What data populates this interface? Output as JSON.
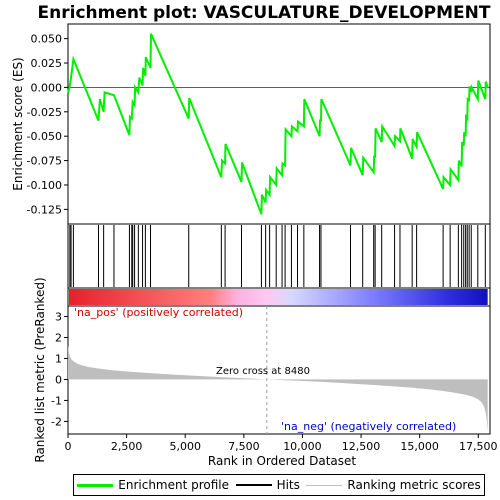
{
  "chart_data": {
    "type": "line",
    "title": "Enrichment plot: VASCULATURE_DEVELOPMENT",
    "xlabel": "Rank in Ordered Dataset",
    "top_ylabel": "Enrichment score (ES)",
    "bottom_ylabel": "Ranked list metric (PreRanked)",
    "xlim": [
      0,
      18000
    ],
    "es_ylim": [
      -0.14,
      0.065
    ],
    "es_yticks": [
      -0.125,
      -0.1,
      -0.075,
      -0.05,
      -0.025,
      0.0,
      0.025,
      0.05
    ],
    "es_ytick_labels": [
      "-0.125",
      "-0.100",
      "-0.075",
      "-0.050",
      "-0.025",
      "0.000",
      "0.025",
      "0.050"
    ],
    "metric_ylim": [
      -2.6,
      3.5
    ],
    "metric_yticks": [
      -2,
      -1,
      0,
      1,
      2,
      3
    ],
    "xticks": [
      0,
      2500,
      5000,
      7500,
      10000,
      12500,
      15000,
      17500
    ],
    "xtick_labels": [
      "0",
      "2,500",
      "5,000",
      "7,500",
      "10,000",
      "12,500",
      "15,000",
      "17,500"
    ],
    "es_series": {
      "name": "Enrichment profile",
      "color": "#00ee00",
      "x": [
        0,
        80,
        130,
        230,
        1300,
        1360,
        1520,
        1560,
        1960,
        2620,
        2640,
        2720,
        2760,
        2840,
        2860,
        3000,
        3040,
        3180,
        3200,
        3300,
        3320,
        3520,
        3540,
        5150,
        5170,
        6540,
        6570,
        6700,
        6720,
        7400,
        7420,
        8250,
        8270,
        8430,
        8450,
        8600,
        8620,
        8880,
        8900,
        9130,
        9150,
        9260,
        9280,
        9530,
        9550,
        9790,
        9810,
        10060,
        10080,
        10730,
        10750,
        10790,
        10810,
        12050,
        12070,
        12570,
        12590,
        13040,
        13060,
        13100,
        13120,
        13380,
        13400,
        13930,
        13950,
        14160,
        14180,
        14680,
        14700,
        14870,
        14890,
        16000,
        16020,
        16300,
        16320,
        16650,
        16670,
        16790,
        16810,
        16880,
        16900,
        16960,
        16980,
        17030,
        17050,
        17110,
        17130,
        17200,
        17220,
        17480,
        17500,
        17800,
        17820,
        17900
      ],
      "y": [
        -0.006,
        0.002,
        0.01,
        0.029,
        -0.034,
        -0.012,
        -0.025,
        -0.005,
        -0.008,
        -0.049,
        -0.03,
        -0.032,
        -0.015,
        -0.018,
        0.0,
        -0.005,
        0.01,
        0.002,
        0.02,
        0.012,
        0.031,
        0.02,
        0.055,
        -0.032,
        -0.011,
        -0.092,
        -0.075,
        -0.078,
        -0.058,
        -0.097,
        -0.077,
        -0.13,
        -0.11,
        -0.118,
        -0.105,
        -0.11,
        -0.092,
        -0.1,
        -0.083,
        -0.09,
        -0.078,
        -0.08,
        -0.043,
        -0.05,
        -0.04,
        -0.045,
        -0.035,
        -0.04,
        -0.012,
        -0.05,
        -0.033,
        -0.035,
        -0.012,
        -0.08,
        -0.062,
        -0.09,
        -0.072,
        -0.087,
        -0.07,
        -0.072,
        -0.042,
        -0.056,
        -0.04,
        -0.06,
        -0.05,
        -0.055,
        -0.042,
        -0.073,
        -0.053,
        -0.061,
        -0.046,
        -0.104,
        -0.092,
        -0.1,
        -0.084,
        -0.095,
        -0.075,
        -0.081,
        -0.056,
        -0.06,
        -0.046,
        -0.05,
        -0.03,
        -0.032,
        -0.012,
        -0.013,
        0.001,
        -0.005,
        0.0,
        -0.012,
        0.007,
        -0.012,
        0.006,
        0.0
      ]
    },
    "hits_series": {
      "name": "Hits",
      "color": "#000000",
      "x": [
        80,
        130,
        230,
        1300,
        1520,
        1960,
        2620,
        2720,
        2760,
        2840,
        3000,
        3180,
        3300,
        3520,
        5150,
        6540,
        6700,
        7400,
        8250,
        8430,
        8600,
        8880,
        9130,
        9260,
        9530,
        9790,
        10060,
        10730,
        10790,
        12050,
        12570,
        13040,
        13100,
        13380,
        13930,
        14160,
        14680,
        14870,
        16000,
        16300,
        16650,
        16790,
        16880,
        16960,
        17030,
        17110,
        17200,
        17480,
        17800
      ]
    },
    "metric_series": {
      "name": "Ranking metric scores",
      "color": "#bebebe",
      "x": [
        0,
        30,
        80,
        150,
        250,
        400,
        600,
        900,
        1300,
        1800,
        2500,
        3500,
        4500,
        5500,
        6500,
        7500,
        8480,
        9500,
        10500,
        11500,
        12500,
        13500,
        14500,
        15500,
        16000,
        16500,
        17000,
        17300,
        17500,
        17650,
        17750,
        17800,
        17850,
        17880,
        17900
      ],
      "y": [
        1.65,
        1.35,
        1.1,
        0.95,
        0.85,
        0.75,
        0.67,
        0.59,
        0.52,
        0.45,
        0.38,
        0.3,
        0.23,
        0.17,
        0.11,
        0.06,
        0.0,
        -0.05,
        -0.1,
        -0.16,
        -0.23,
        -0.3,
        -0.38,
        -0.48,
        -0.55,
        -0.63,
        -0.74,
        -0.84,
        -0.95,
        -1.1,
        -1.3,
        -1.5,
        -1.85,
        -2.2,
        -2.45
      ]
    },
    "zero_cross_rank": 8480,
    "annotations": {
      "pos": "'na_pos' (positively correlated)",
      "neg": "'na_neg' (negatively correlated)",
      "zero": "Zero cross at 8480"
    },
    "colors": {
      "pos_bar": "#ff0000",
      "neg_bar": "#0000ff",
      "pos_text": "#cc0000",
      "neg_text": "#0000cc",
      "es_line": "#00ee00",
      "metric_fill": "#bebebe",
      "zero_line": "#a0a0a0"
    },
    "legend": [
      "Enrichment profile",
      "Hits",
      "Ranking metric scores"
    ],
    "legend_placement": "bottom"
  }
}
